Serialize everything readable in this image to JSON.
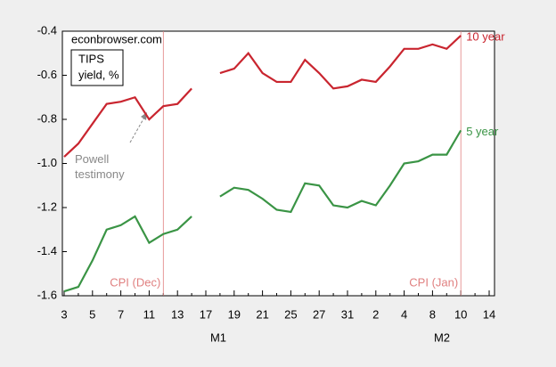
{
  "chart_data": {
    "type": "line",
    "source": "econbrowser.com",
    "legend_title": [
      "TIPS",
      "yield, %"
    ],
    "categories": [
      "3",
      null,
      "5",
      null,
      "7",
      null,
      "11",
      null,
      "13",
      null,
      "17",
      null,
      "19",
      null,
      "21",
      null,
      "25",
      null,
      "27",
      null,
      "31",
      null,
      "2",
      null,
      "4",
      null,
      "8",
      null,
      "10",
      null,
      "14"
    ],
    "months": [
      "M1",
      "M2"
    ],
    "series": [
      {
        "name": "10 year",
        "color": "#c9252f",
        "values": [
          -0.97,
          -0.91,
          -0.82,
          -0.73,
          -0.72,
          -0.7,
          -0.8,
          -0.74,
          -0.73,
          -0.66,
          null,
          -0.59,
          -0.57,
          -0.5,
          -0.59,
          -0.63,
          -0.63,
          -0.53,
          -0.59,
          -0.66,
          -0.65,
          -0.62,
          -0.63,
          -0.56,
          -0.48,
          -0.48,
          -0.46,
          -0.48,
          -0.42,
          null,
          null
        ]
      },
      {
        "name": "5 year",
        "color": "#3a9445",
        "values": [
          -1.58,
          -1.56,
          -1.44,
          -1.3,
          -1.28,
          -1.24,
          -1.36,
          -1.32,
          -1.3,
          -1.24,
          null,
          -1.15,
          -1.11,
          -1.12,
          -1.16,
          -1.21,
          -1.22,
          -1.09,
          -1.1,
          -1.19,
          -1.2,
          -1.17,
          -1.19,
          -1.1,
          -1.0,
          -0.99,
          -0.96,
          -0.96,
          -0.85,
          null,
          null
        ]
      }
    ],
    "annotations": [
      "CPI (Dec)",
      "CPI (Jan)",
      "Powell testimony"
    ],
    "ylim": [
      -1.6,
      -0.4
    ],
    "yticks": [
      -1.6,
      -1.4,
      -1.2,
      {
        "value": -1.0,
        "label": "-1.0"
      },
      -0.8,
      -0.6,
      -0.4
    ]
  }
}
